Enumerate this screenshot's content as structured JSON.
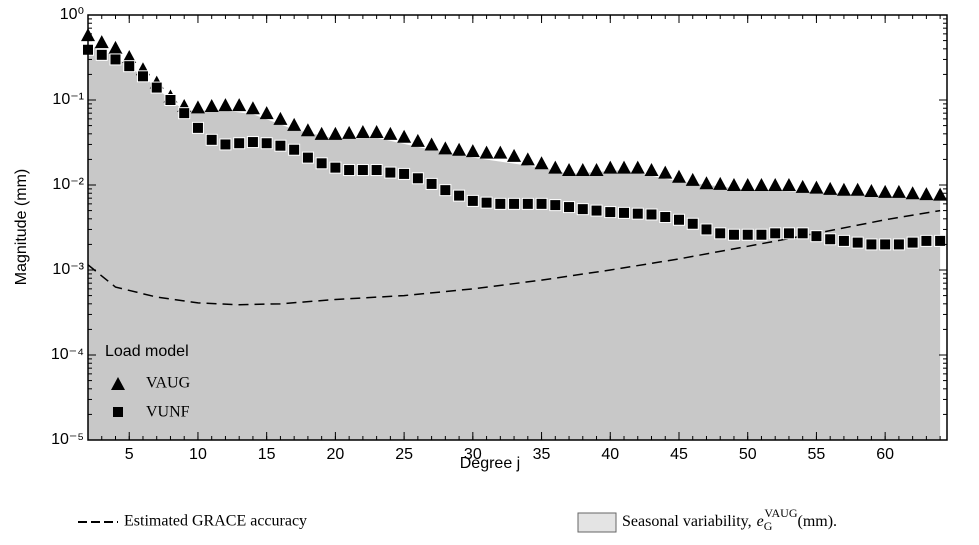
{
  "chart_data": {
    "type": "scatter",
    "xlabel": "Degree j",
    "ylabel": "Magnitude (mm)",
    "xlim": [
      2,
      64.5
    ],
    "ylim": [
      1e-05,
      1
    ],
    "log_y": true,
    "xticks": [
      5,
      10,
      15,
      20,
      25,
      30,
      35,
      40,
      45,
      50,
      55,
      60
    ],
    "yticks": [
      {
        "value": 1,
        "label": "10⁰"
      },
      {
        "value": 0.1,
        "label": "10⁻¹"
      },
      {
        "value": 0.01,
        "label": "10⁻²"
      },
      {
        "value": 0.001,
        "label": "10⁻³"
      },
      {
        "value": 0.0001,
        "label": "10⁻⁴"
      },
      {
        "value": 1e-05,
        "label": "10⁻⁵"
      }
    ],
    "legend_title": "Load model",
    "x": [
      2,
      3,
      4,
      5,
      6,
      7,
      8,
      9,
      10,
      11,
      12,
      13,
      14,
      15,
      16,
      17,
      18,
      19,
      20,
      21,
      22,
      23,
      24,
      25,
      26,
      27,
      28,
      29,
      30,
      31,
      32,
      33,
      34,
      35,
      36,
      37,
      38,
      39,
      40,
      41,
      42,
      43,
      44,
      45,
      46,
      47,
      48,
      49,
      50,
      51,
      52,
      53,
      54,
      55,
      56,
      57,
      58,
      59,
      60,
      61,
      62,
      63,
      64
    ],
    "series": [
      {
        "name": "VAUG",
        "marker": "triangle",
        "color": "#000000",
        "values": [
          0.58,
          0.48,
          0.41,
          0.32,
          0.23,
          0.16,
          0.11,
          0.085,
          0.082,
          0.085,
          0.087,
          0.087,
          0.08,
          0.07,
          0.06,
          0.051,
          0.044,
          0.04,
          0.04,
          0.041,
          0.042,
          0.042,
          0.04,
          0.037,
          0.033,
          0.03,
          0.027,
          0.026,
          0.025,
          0.024,
          0.024,
          0.022,
          0.02,
          0.018,
          0.016,
          0.015,
          0.015,
          0.015,
          0.016,
          0.016,
          0.016,
          0.015,
          0.014,
          0.0125,
          0.0115,
          0.0105,
          0.0103,
          0.01,
          0.01,
          0.01,
          0.01,
          0.01,
          0.0095,
          0.0093,
          0.009,
          0.0088,
          0.0088,
          0.0085,
          0.0083,
          0.0083,
          0.008,
          0.0078,
          0.0077
        ]
      },
      {
        "name": "VUNF",
        "marker": "square",
        "color": "#000000",
        "values": [
          0.39,
          0.34,
          0.3,
          0.25,
          0.19,
          0.14,
          0.1,
          0.07,
          0.047,
          0.034,
          0.03,
          0.031,
          0.032,
          0.031,
          0.029,
          0.026,
          0.021,
          0.018,
          0.016,
          0.015,
          0.015,
          0.015,
          0.014,
          0.0135,
          0.012,
          0.0103,
          0.0087,
          0.0075,
          0.0065,
          0.0062,
          0.006,
          0.006,
          0.006,
          0.006,
          0.0058,
          0.0055,
          0.0052,
          0.005,
          0.0048,
          0.0047,
          0.0046,
          0.0045,
          0.0042,
          0.0039,
          0.0035,
          0.003,
          0.0027,
          0.0026,
          0.0026,
          0.0026,
          0.0027,
          0.0027,
          0.0027,
          0.0025,
          0.0023,
          0.0022,
          0.0021,
          0.002,
          0.002,
          0.002,
          0.0021,
          0.0022,
          0.0022
        ]
      },
      {
        "name": "Estimated GRACE accuracy",
        "marker": "dashed-line",
        "color": "#000000",
        "x": [
          2,
          4,
          7,
          10,
          13,
          16,
          20,
          25,
          30,
          35,
          40,
          45,
          50,
          55,
          60,
          64
        ],
        "values": [
          0.00115,
          0.00063,
          0.00048,
          0.00041,
          0.00039,
          0.0004,
          0.00045,
          0.0005,
          0.0006,
          0.00076,
          0.001,
          0.00135,
          0.0019,
          0.0027,
          0.0039,
          0.005
        ]
      },
      {
        "name": "Seasonal variability,",
        "marker": "area",
        "color": "#c8c8c8",
        "symbol": "e",
        "symbol_sub": "G",
        "symbol_sup": "VAUG",
        "unit": "(mm).",
        "x": [
          2,
          4,
          6,
          8,
          9,
          12,
          14,
          17,
          20,
          23,
          26,
          30,
          35,
          37,
          41,
          45,
          50,
          55,
          60,
          64
        ],
        "values": [
          0.45,
          0.32,
          0.19,
          0.1,
          0.075,
          0.075,
          0.068,
          0.045,
          0.035,
          0.036,
          0.028,
          0.021,
          0.016,
          0.0135,
          0.015,
          0.011,
          0.0088,
          0.0082,
          0.0075,
          0.0068
        ]
      }
    ]
  }
}
